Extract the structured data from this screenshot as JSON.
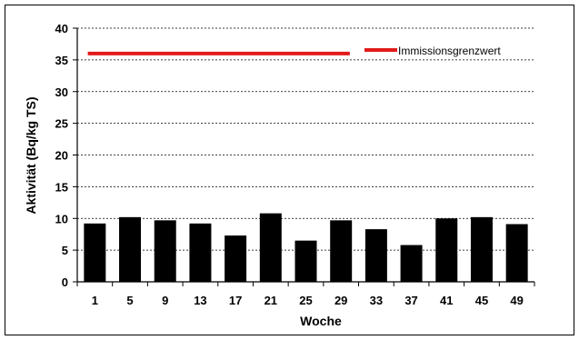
{
  "chart_data": {
    "type": "bar",
    "categories": [
      "1",
      "5",
      "9",
      "13",
      "17",
      "21",
      "25",
      "29",
      "33",
      "37",
      "41",
      "45",
      "49"
    ],
    "series": [
      {
        "values": [
          9.2,
          10.2,
          9.7,
          9.2,
          7.3,
          10.8,
          6.5,
          9.7,
          8.3,
          5.8,
          10.0,
          10.2,
          9.1
        ],
        "color": "#000000"
      },
      {
        "name": "Immissionsgrenzwert",
        "type": "line",
        "value": 36,
        "x_range": [
          "1",
          "29"
        ],
        "color": "#e21b1b"
      }
    ],
    "xlabel": "Woche",
    "ylabel": "Aktivität (Bq/kg TS)",
    "ylim": [
      0,
      40
    ],
    "yticks": [
      "0",
      "5",
      "10",
      "15",
      "20",
      "25",
      "30",
      "35",
      "40"
    ],
    "grid": "horizontal dotted",
    "legend": "top-right"
  }
}
